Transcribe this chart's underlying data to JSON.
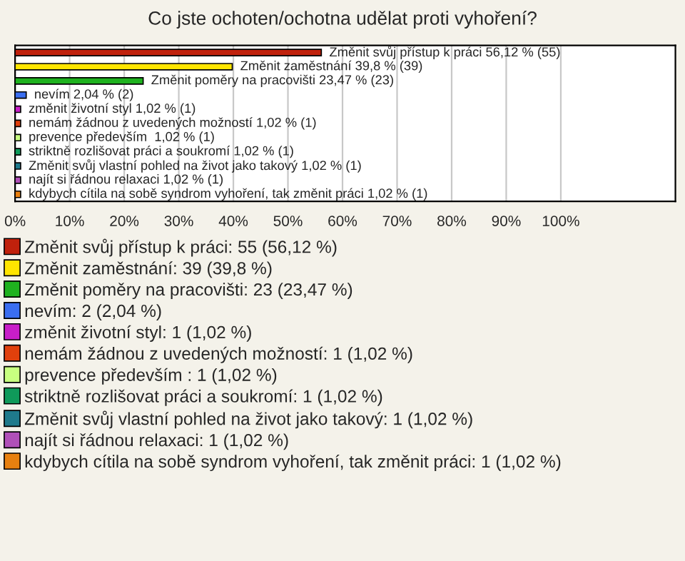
{
  "chart_data": {
    "type": "bar",
    "orientation": "horizontal",
    "title": "Co jste ochoten/ochotna udělat proti vyhoření?",
    "categories": [
      null,
      null,
      null,
      null,
      null,
      null,
      null,
      null,
      null,
      null,
      null
    ],
    "series": [
      {
        "name": "Změnit svůj přístup k práci: 55 (56,12 %)",
        "color": "#c0210c",
        "values": [
          56.12,
          null,
          null,
          null,
          null,
          null,
          null,
          null,
          null,
          null,
          null
        ],
        "value_labels": [
          "Změnit svůj přístup k práci 56,12 % (55)",
          null,
          null,
          null,
          null,
          null,
          null,
          null,
          null,
          null,
          null
        ]
      },
      {
        "name": "Změnit zaměstnání: 39 (39,8 %)",
        "color": "#ffe500",
        "values": [
          null,
          39.8,
          null,
          null,
          null,
          null,
          null,
          null,
          null,
          null,
          null
        ],
        "value_labels": [
          null,
          "Změnit zaměstnání 39,8 % (39)",
          null,
          null,
          null,
          null,
          null,
          null,
          null,
          null,
          null
        ]
      },
      {
        "name": "Změnit poměry na pracovišti: 23 (23,47 %)",
        "color": "#1fb21f",
        "values": [
          null,
          null,
          23.47,
          null,
          null,
          null,
          null,
          null,
          null,
          null,
          null
        ],
        "value_labels": [
          null,
          null,
          "Změnit poměry na pracovišti 23,47 % (23)",
          null,
          null,
          null,
          null,
          null,
          null,
          null,
          null
        ]
      },
      {
        "name": "nevím: 2 (2,04 %)",
        "color": "#3a6ef0",
        "values": [
          null,
          null,
          null,
          2.04,
          null,
          null,
          null,
          null,
          null,
          null,
          null
        ],
        "value_labels": [
          null,
          null,
          null,
          "nevím 2,04 % (2)",
          null,
          null,
          null,
          null,
          null,
          null,
          null
        ]
      },
      {
        "name": "změnit životní styl: 1 (1,02 %)",
        "color": "#c81ec8",
        "values": [
          null,
          null,
          null,
          null,
          1.02,
          null,
          null,
          null,
          null,
          null,
          null
        ],
        "value_labels": [
          null,
          null,
          null,
          null,
          "změnit životní styl 1,02 % (1)",
          null,
          null,
          null,
          null,
          null,
          null
        ]
      },
      {
        "name": "nemám žádnou z uvedených možností: 1 (1,02 %)",
        "color": "#e0400c",
        "values": [
          null,
          null,
          null,
          null,
          null,
          1.02,
          null,
          null,
          null,
          null,
          null
        ],
        "value_labels": [
          null,
          null,
          null,
          null,
          null,
          "nemám žádnou z uvedených možností 1,02 % (1)",
          null,
          null,
          null,
          null,
          null
        ]
      },
      {
        "name": "prevence především : 1 (1,02 %)",
        "color": "#c8ff80",
        "values": [
          null,
          null,
          null,
          null,
          null,
          null,
          1.02,
          null,
          null,
          null,
          null
        ],
        "value_labels": [
          null,
          null,
          null,
          null,
          null,
          null,
          "prevence především  1,02 % (1)",
          null,
          null,
          null,
          null
        ]
      },
      {
        "name": "striktně rozlišovat práci a soukromí: 1 (1,02 %)",
        "color": "#0f9a5a",
        "values": [
          null,
          null,
          null,
          null,
          null,
          null,
          null,
          1.02,
          null,
          null,
          null
        ],
        "value_labels": [
          null,
          null,
          null,
          null,
          null,
          null,
          null,
          "striktně rozlišovat práci a soukromí 1,02 % (1)",
          null,
          null,
          null
        ]
      },
      {
        "name": "Změnit svůj vlastní pohled na život jako takový: 1 (1,02 %)",
        "color": "#1f7a8c",
        "values": [
          null,
          null,
          null,
          null,
          null,
          null,
          null,
          null,
          1.02,
          null,
          null
        ],
        "value_labels": [
          null,
          null,
          null,
          null,
          null,
          null,
          null,
          null,
          "Změnit svůj vlastní pohled na život jako takový 1,02 % (1)",
          null,
          null
        ]
      },
      {
        "name": "najít si řádnou relaxaci: 1 (1,02 %)",
        "color": "#b050b8",
        "values": [
          null,
          null,
          null,
          null,
          null,
          null,
          null,
          null,
          null,
          1.02,
          null
        ],
        "value_labels": [
          null,
          null,
          null,
          null,
          null,
          null,
          null,
          null,
          null,
          "najít si řádnou relaxaci 1,02 % (1)",
          null
        ]
      },
      {
        "name": "kdybych cítila na sobě syndrom vyhoření, tak změnit práci: 1 (1,02 %)",
        "color": "#e8800f",
        "values": [
          null,
          null,
          null,
          null,
          null,
          null,
          null,
          null,
          null,
          null,
          1.02
        ],
        "value_labels": [
          null,
          null,
          null,
          null,
          null,
          null,
          null,
          null,
          null,
          null,
          "kdybych cítila na sobě syndrom vyhoření, tak změnit práci 1,02 % (1)"
        ]
      }
    ],
    "xlim": [
      0,
      121
    ],
    "xticks": [
      {
        "value": 0,
        "label": "0%"
      },
      {
        "value": 10,
        "label": "10%"
      },
      {
        "value": 20,
        "label": "20%"
      },
      {
        "value": 30,
        "label": "30%"
      },
      {
        "value": 40,
        "label": "40%"
      },
      {
        "value": 50,
        "label": "50%"
      },
      {
        "value": 60,
        "label": "60%"
      },
      {
        "value": 70,
        "label": "70%"
      },
      {
        "value": 80,
        "label": "80%"
      },
      {
        "value": 90,
        "label": "90%"
      },
      {
        "value": 100,
        "label": "100%"
      }
    ],
    "tick_labels": "x",
    "grid": "x",
    "legend": "bottom"
  }
}
